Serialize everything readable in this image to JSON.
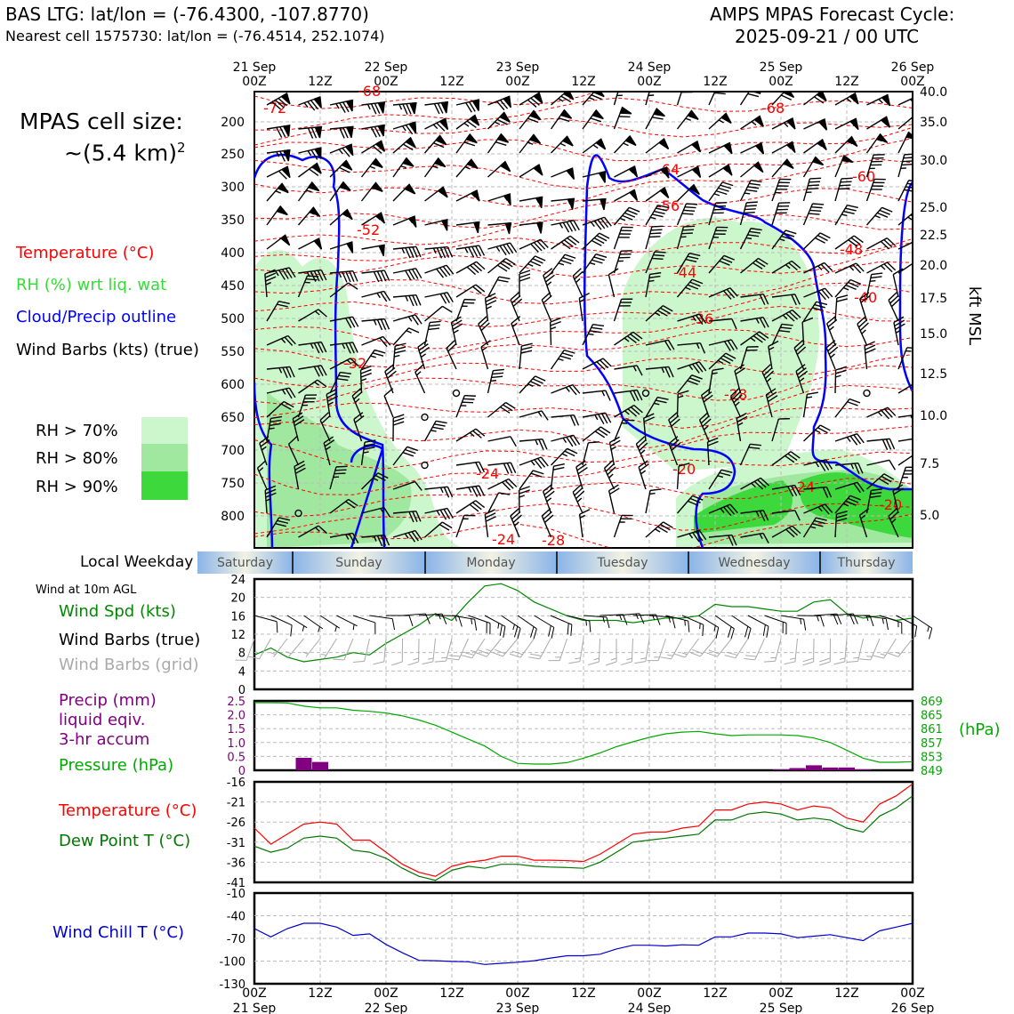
{
  "header": {
    "station_line": "BAS LTG: lat/lon = (-76.4300, -107.8770)",
    "cell_line": "Nearest cell 1575730: lat/lon = (-76.4514, 252.1074)",
    "product_line": "AMPS MPAS Forecast Cycle:",
    "cycle_line": "2025-09-21 / 00 UTC"
  },
  "cell_size": {
    "line1": "MPAS cell size:",
    "line2": "~(5.4 km)",
    "exponent": "2"
  },
  "legend": {
    "temperature": "Temperature (°C)",
    "rh": "RH (%) wrt liq. wat",
    "cloud": "Cloud/Precip outline",
    "wind": "Wind Barbs (kts) (true)",
    "rh70": "RH > 70%",
    "rh80": "RH > 80%",
    "rh90": "RH > 90%"
  },
  "colors": {
    "temperature": "#ff0000",
    "rh": "#33dd33",
    "cloud": "#0000ff",
    "rh70": "#ccf7cc",
    "rh80": "#a0e8a0",
    "rh90": "#3cd83c",
    "precip": "#800080",
    "pressure": "#00aa00",
    "dewpoint": "#007700",
    "windchill": "#0000cc",
    "wind_spd": "#008800",
    "grid_barb": "#aaaaaa"
  },
  "time_axis": {
    "top_days": [
      "21 Sep",
      "22 Sep",
      "23 Sep",
      "24 Sep",
      "25 Sep",
      "26 Sep"
    ],
    "hour_labels": [
      "00Z",
      "12Z",
      "00Z",
      "12Z",
      "00Z",
      "12Z",
      "00Z",
      "12Z",
      "00Z",
      "12Z",
      "00Z"
    ]
  },
  "weekday": {
    "label": "Local Weekday",
    "days": [
      "Saturday",
      "Sunday",
      "Monday",
      "Tuesday",
      "Wednesday",
      "Thursday"
    ]
  },
  "cross_section": {
    "pressure_ticks": [
      "200",
      "250",
      "300",
      "350",
      "400",
      "450",
      "500",
      "550",
      "600",
      "650",
      "700",
      "750",
      "800"
    ],
    "kft_ticks": [
      "40.0",
      "35.0",
      "30.0",
      "25.0",
      "22.5",
      "20.0",
      "17.5",
      "15.0",
      "12.5",
      "10.0",
      "7.5",
      "5.0"
    ],
    "kft_label": "kft MSL",
    "temp_labels": [
      "-72",
      "-68",
      "-68",
      "-64",
      "-60",
      "-56",
      "-52",
      "-48",
      "-44",
      "-40",
      "-36",
      "-32",
      "-28",
      "-24",
      "-20",
      "-24",
      "-20",
      "-24",
      "-28"
    ]
  },
  "panel_wind": {
    "title": "Wind at 10m AGL",
    "spd_label": "Wind Spd (kts)",
    "barb_true_label": "Wind Barbs (true)",
    "barb_grid_label": "Wind Barbs (grid)",
    "yticks": [
      "24",
      "20",
      "16",
      "12",
      "8",
      "4",
      "0"
    ]
  },
  "panel_precip": {
    "precip_label_1": "Precip (mm)",
    "precip_label_2": "liquid eqiv.",
    "precip_label_3": "3-hr accum",
    "pressure_label": "Pressure (hPa)",
    "hpa_unit": "(hPa)",
    "left_ticks": [
      "2.5",
      "2.0",
      "1.5",
      "1.0",
      "0.5",
      "0"
    ],
    "right_ticks": [
      "869",
      "865",
      "861",
      "857",
      "853",
      "849"
    ]
  },
  "panel_temp": {
    "temp_label": "Temperature (°C)",
    "dew_label": "Dew Point T (°C)",
    "yticks": [
      "-16",
      "-21",
      "-26",
      "-31",
      "-36",
      "-41"
    ]
  },
  "panel_chill": {
    "label": "Wind Chill T (°C)",
    "yticks": [
      "-10",
      "-40",
      "-70",
      "-100",
      "-130"
    ]
  },
  "chart_data": [
    {
      "type": "line",
      "title": "Wind at 10m AGL",
      "x": [
        "21 Sep 00Z",
        "03Z",
        "06Z",
        "09Z",
        "12Z",
        "15Z",
        "18Z",
        "21Z",
        "22 Sep 00Z",
        "03Z",
        "06Z",
        "09Z",
        "12Z",
        "15Z",
        "18Z",
        "21Z",
        "23 Sep 00Z",
        "03Z",
        "06Z",
        "09Z",
        "12Z",
        "15Z",
        "18Z",
        "21Z",
        "24 Sep 00Z",
        "03Z",
        "06Z",
        "09Z",
        "12Z",
        "15Z",
        "18Z",
        "21Z",
        "25 Sep 00Z",
        "03Z",
        "06Z",
        "09Z",
        "12Z",
        "15Z",
        "18Z",
        "21Z",
        "26 Sep 00Z"
      ],
      "series": [
        {
          "name": "Wind Spd (kts)",
          "values": [
            7.5,
            9,
            7,
            6,
            6.5,
            7,
            8,
            7.5,
            10,
            12,
            14,
            16.5,
            15,
            19,
            22.5,
            23,
            21.5,
            19,
            17.5,
            16,
            15,
            15,
            15,
            14.5,
            15,
            15.5,
            15.5,
            16,
            18.5,
            18,
            18,
            17.5,
            17,
            17,
            19,
            19.5,
            16.5,
            15.5,
            16,
            15,
            15.5
          ]
        }
      ],
      "ylim": [
        0,
        24
      ]
    },
    {
      "type": "bar",
      "title": "Precip (mm) 3-hr accum",
      "categories": [
        "21 Sep 09Z",
        "21 Sep 12Z",
        "24 Sep 21Z",
        "25 Sep 00Z",
        "25 Sep 03Z",
        "25 Sep 06Z",
        "25 Sep 09Z",
        "25 Sep 12Z"
      ],
      "values": [
        0.45,
        0.3,
        0.03,
        0.08,
        0.18,
        0.1,
        0.1,
        0.03
      ],
      "ylim": [
        0,
        2.5
      ]
    },
    {
      "type": "line",
      "title": "Pressure (hPa)",
      "x": [
        "21 Sep 00Z",
        "03Z",
        "06Z",
        "09Z",
        "12Z",
        "15Z",
        "18Z",
        "21Z",
        "22 Sep 00Z",
        "03Z",
        "06Z",
        "09Z",
        "12Z",
        "15Z",
        "18Z",
        "21Z",
        "23 Sep 00Z",
        "03Z",
        "06Z",
        "09Z",
        "12Z",
        "15Z",
        "18Z",
        "21Z",
        "24 Sep 00Z",
        "03Z",
        "06Z",
        "09Z",
        "12Z",
        "15Z",
        "18Z",
        "21Z",
        "25 Sep 00Z",
        "03Z",
        "06Z",
        "09Z",
        "12Z",
        "15Z",
        "18Z",
        "21Z",
        "26 Sep 00Z"
      ],
      "series": [
        {
          "name": "Pressure (hPa)",
          "values": [
            868.5,
            868.5,
            868.4,
            867.5,
            867,
            867,
            866.3,
            866,
            865.5,
            864.7,
            863.5,
            862,
            860,
            858,
            856,
            853,
            851,
            850.8,
            850.8,
            851.2,
            852.5,
            854,
            855.8,
            857.2,
            858.5,
            859.5,
            860,
            860.2,
            859.5,
            859,
            859.2,
            859.2,
            859.2,
            859,
            858.3,
            857,
            854.8,
            852.5,
            851.3,
            851.3,
            851.5
          ]
        }
      ],
      "ylim": [
        849,
        869
      ]
    },
    {
      "type": "line",
      "title": "Temperature / Dew Point T (°C)",
      "x": [
        "21 Sep 00Z",
        "03Z",
        "06Z",
        "09Z",
        "12Z",
        "15Z",
        "18Z",
        "21Z",
        "22 Sep 00Z",
        "03Z",
        "06Z",
        "09Z",
        "12Z",
        "15Z",
        "18Z",
        "21Z",
        "23 Sep 00Z",
        "03Z",
        "06Z",
        "09Z",
        "12Z",
        "15Z",
        "18Z",
        "21Z",
        "24 Sep 00Z",
        "03Z",
        "06Z",
        "09Z",
        "12Z",
        "15Z",
        "18Z",
        "21Z",
        "25 Sep 00Z",
        "03Z",
        "06Z",
        "09Z",
        "12Z",
        "15Z",
        "18Z",
        "21Z",
        "26 Sep 00Z"
      ],
      "series": [
        {
          "name": "Temperature (°C)",
          "values": [
            -27.5,
            -31.5,
            -29,
            -26.5,
            -26,
            -26.5,
            -30.5,
            -30.5,
            -33.5,
            -36.5,
            -38.5,
            -39.5,
            -37,
            -36,
            -35.5,
            -34.5,
            -34.5,
            -35.5,
            -35.5,
            -35.6,
            -35.8,
            -34,
            -31.5,
            -29,
            -28.5,
            -28.5,
            -27.5,
            -27,
            -23,
            -23,
            -21.5,
            -21,
            -21.5,
            -23,
            -22,
            -22.5,
            -25,
            -26,
            -21.5,
            -19.5,
            -16.5
          ]
        },
        {
          "name": "Dew Point T (°C)",
          "values": [
            -32,
            -33.5,
            -32.5,
            -30,
            -29.5,
            -30,
            -33,
            -33.5,
            -35,
            -37.5,
            -39.5,
            -40.5,
            -38,
            -37,
            -37.5,
            -36.5,
            -36.5,
            -37,
            -37.2,
            -37.3,
            -37.5,
            -36,
            -33.5,
            -31,
            -30.5,
            -30,
            -29.5,
            -29,
            -25.5,
            -25.5,
            -24,
            -23.5,
            -24,
            -25.5,
            -25,
            -25.5,
            -27.5,
            -28.5,
            -24.5,
            -22.5,
            -19.5
          ]
        }
      ],
      "ylim": [
        -41,
        -16
      ]
    },
    {
      "type": "line",
      "title": "Wind Chill T (°C)",
      "x": [
        "21 Sep 00Z",
        "03Z",
        "06Z",
        "09Z",
        "12Z",
        "15Z",
        "18Z",
        "21Z",
        "22 Sep 00Z",
        "03Z",
        "06Z",
        "09Z",
        "12Z",
        "15Z",
        "18Z",
        "21Z",
        "23 Sep 00Z",
        "03Z",
        "06Z",
        "09Z",
        "12Z",
        "15Z",
        "18Z",
        "21Z",
        "24 Sep 00Z",
        "03Z",
        "06Z",
        "09Z",
        "12Z",
        "15Z",
        "18Z",
        "21Z",
        "25 Sep 00Z",
        "03Z",
        "06Z",
        "09Z",
        "12Z",
        "15Z",
        "18Z",
        "21Z",
        "26 Sep 00Z"
      ],
      "series": [
        {
          "name": "Wind Chill T (°C)",
          "values": [
            -57,
            -68,
            -57,
            -50,
            -50,
            -55,
            -66,
            -64,
            -78,
            -89,
            -99,
            -99.5,
            -100.5,
            -101,
            -104.5,
            -103,
            -101.5,
            -99.5,
            -96,
            -93,
            -93,
            -91,
            -84,
            -79,
            -79,
            -80,
            -78.5,
            -79,
            -68,
            -68,
            -63,
            -63,
            -64,
            -69,
            -67,
            -65,
            -69,
            -73,
            -60,
            -55,
            -50
          ]
        }
      ],
      "ylim": [
        -130,
        -10
      ]
    }
  ]
}
